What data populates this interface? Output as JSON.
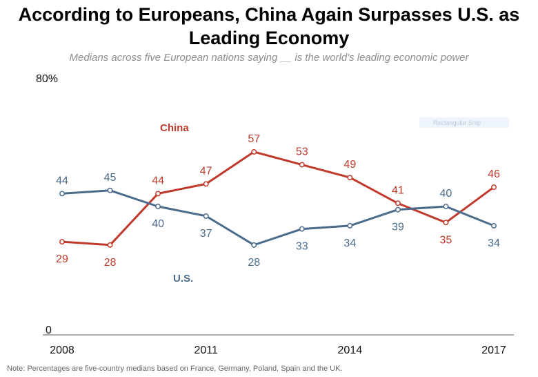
{
  "title_line1": "According to Europeans, China Again Surpasses U.S. as",
  "title_line2": "Leading Economy",
  "subtitle": "Medians across five European nations saying __ is the world's leading economic power",
  "note": "Note: Percentages are five-country medians based on France, Germany, Poland, Spain and the UK.",
  "watermark": "Rectangular Snip",
  "colors": {
    "china": "#c0392b",
    "us": "#4a6b8a"
  },
  "chart_data": {
    "type": "line",
    "title": "According to Europeans, China Again Surpasses U.S. as Leading Economy",
    "subtitle": "Medians across five European nations saying __ is the world's leading economic power",
    "x": [
      2008,
      2009,
      2010,
      2011,
      2012,
      2013,
      2014,
      2015,
      2016,
      2017
    ],
    "x_tick_labels": [
      "2008",
      "2011",
      "2014",
      "2017"
    ],
    "y_tick_labels": [
      "0",
      "80%"
    ],
    "ylim": [
      0,
      80
    ],
    "series": [
      {
        "name": "China",
        "values": [
          29,
          28,
          44,
          47,
          57,
          53,
          49,
          41,
          35,
          46
        ],
        "labels": [
          "29",
          "28",
          "44",
          "47",
          "57",
          "53",
          "49",
          "41",
          "35",
          "46"
        ]
      },
      {
        "name": "U.S.",
        "values": [
          44,
          45,
          40,
          37,
          28,
          33,
          34,
          39,
          40,
          34
        ],
        "labels": [
          "44",
          "45",
          "40",
          "37",
          "28",
          "33",
          "34",
          "39",
          "40",
          "34"
        ]
      }
    ]
  }
}
